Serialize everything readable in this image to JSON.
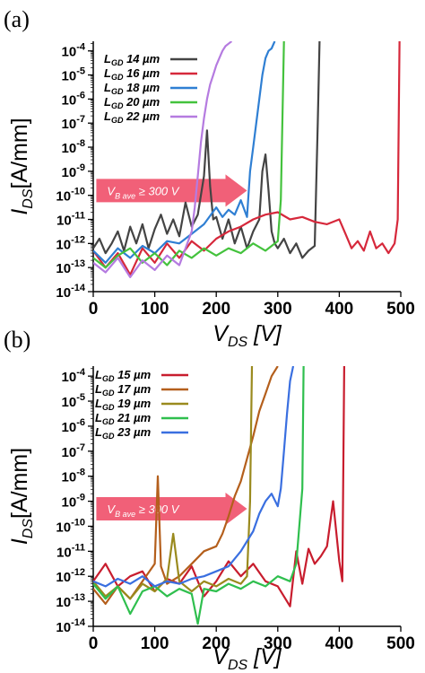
{
  "chart_data": [
    {
      "type": "line",
      "panel_label": "(a)",
      "xlabel_main": "V",
      "xlabel_sub": "DS",
      "xlabel_rest": " [V]",
      "ylabel_main": "I",
      "ylabel_sub": "DS",
      "ylabel_rest": "[A/mm]",
      "xlim": [
        0,
        500
      ],
      "ylog": true,
      "ylim_exp": [
        -14,
        -3.6
      ],
      "x_ticks": [
        0,
        100,
        200,
        300,
        400,
        500
      ],
      "y_tick_exponents": [
        -14,
        -13,
        -12,
        -11,
        -10,
        -9,
        -8,
        -7,
        -6,
        -5,
        -4
      ],
      "grid": false,
      "legend_position": "top-left",
      "annotation": {
        "pre": "V",
        "sub": "B ave",
        "post": " ≥ 300 V",
        "x_from": 5,
        "x_to": 250,
        "y_exp": -9.8
      },
      "series": [
        {
          "name_main": "L",
          "name_sub": "GD",
          "name_rest": " 14 µm",
          "color": "#444444",
          "x": [
            0,
            10,
            20,
            30,
            40,
            50,
            60,
            70,
            80,
            90,
            100,
            110,
            120,
            130,
            140,
            150,
            160,
            170,
            180,
            185,
            190,
            195,
            200,
            210,
            220,
            230,
            240,
            250,
            260,
            270,
            275,
            280,
            285,
            290,
            295,
            300,
            310,
            320,
            330,
            340,
            350,
            360,
            365,
            368
          ],
          "log_y": [
            -12.2,
            -11.8,
            -12.4,
            -12.0,
            -11.5,
            -12.3,
            -11.3,
            -12.0,
            -11.2,
            -12.2,
            -11.4,
            -10.8,
            -11.6,
            -11.0,
            -11.7,
            -10.3,
            -11.3,
            -10.8,
            -9.2,
            -7.3,
            -9.6,
            -11.0,
            -10.9,
            -11.8,
            -11.0,
            -12.0,
            -11.3,
            -12.2,
            -11.5,
            -11.0,
            -9.0,
            -8.3,
            -9.8,
            -11.5,
            -12.0,
            -12.2,
            -11.8,
            -12.4,
            -12.0,
            -12.6,
            -12.3,
            -12.1,
            -7.0,
            -3.6
          ]
        },
        {
          "name_main": "L",
          "name_sub": "GD",
          "name_rest": " 16 µm",
          "color": "#d6283b",
          "x": [
            0,
            20,
            40,
            60,
            80,
            100,
            120,
            140,
            160,
            180,
            200,
            220,
            240,
            260,
            280,
            300,
            320,
            340,
            360,
            380,
            400,
            410,
            420,
            430,
            440,
            450,
            460,
            470,
            480,
            490,
            495,
            498
          ],
          "log_y": [
            -12.3,
            -13.0,
            -12.4,
            -13.3,
            -12.2,
            -12.8,
            -12.0,
            -12.6,
            -11.9,
            -12.3,
            -11.8,
            -11.5,
            -11.3,
            -11.0,
            -10.8,
            -10.7,
            -11.0,
            -10.9,
            -11.1,
            -11.2,
            -11.0,
            -11.6,
            -12.2,
            -11.9,
            -12.3,
            -11.5,
            -12.2,
            -12.0,
            -12.4,
            -12.0,
            -11.0,
            -3.6
          ]
        },
        {
          "name_main": "L",
          "name_sub": "GD",
          "name_rest": " 18 µm",
          "color": "#2f7fd3",
          "x": [
            0,
            20,
            40,
            60,
            80,
            100,
            120,
            140,
            160,
            180,
            200,
            210,
            220,
            230,
            240,
            250,
            255,
            260,
            265,
            270,
            275,
            280,
            285,
            290,
            295
          ],
          "log_y": [
            -12.3,
            -12.8,
            -12.2,
            -12.6,
            -12.1,
            -12.4,
            -11.9,
            -12.0,
            -11.6,
            -11.2,
            -10.5,
            -10.9,
            -10.6,
            -10.8,
            -10.2,
            -10.9,
            -9.0,
            -8.0,
            -7.0,
            -6.0,
            -5.0,
            -4.3,
            -4.0,
            -3.9,
            -3.6
          ]
        },
        {
          "name_main": "L",
          "name_sub": "GD",
          "name_rest": " 20 µm",
          "color": "#44c23d",
          "x": [
            0,
            20,
            40,
            60,
            80,
            100,
            120,
            140,
            160,
            180,
            200,
            220,
            240,
            260,
            280,
            300,
            305,
            310
          ],
          "log_y": [
            -12.6,
            -13.0,
            -12.5,
            -12.2,
            -12.8,
            -12.4,
            -12.9,
            -12.3,
            -12.6,
            -12.2,
            -12.5,
            -12.2,
            -12.4,
            -12.0,
            -12.3,
            -11.9,
            -10.2,
            -3.6
          ]
        },
        {
          "name_main": "L",
          "name_sub": "GD",
          "name_rest": " 22 µm",
          "color": "#b57be0",
          "x": [
            0,
            20,
            40,
            60,
            80,
            100,
            120,
            140,
            150,
            160,
            165,
            170,
            175,
            180,
            185,
            190,
            195,
            200,
            205,
            210,
            215,
            220,
            225
          ],
          "log_y": [
            -12.8,
            -13.2,
            -12.6,
            -13.4,
            -12.7,
            -13.1,
            -12.5,
            -12.9,
            -12.2,
            -11.5,
            -10.5,
            -9.2,
            -7.8,
            -6.8,
            -6.0,
            -5.4,
            -5.0,
            -4.6,
            -4.3,
            -4.0,
            -3.8,
            -3.7,
            -3.6
          ]
        }
      ]
    },
    {
      "type": "line",
      "panel_label": "(b)",
      "xlabel_main": "V",
      "xlabel_sub": "DS",
      "xlabel_rest": " [V]",
      "ylabel_main": "I",
      "ylabel_sub": "DS",
      "ylabel_rest": "[A/mm]",
      "xlim": [
        0,
        500
      ],
      "ylog": true,
      "ylim_exp": [
        -14,
        -3.6
      ],
      "x_ticks": [
        0,
        100,
        200,
        300,
        400,
        500
      ],
      "y_tick_exponents": [
        -14,
        -13,
        -12,
        -11,
        -10,
        -9,
        -8,
        -7,
        -6,
        -5,
        -4
      ],
      "grid": false,
      "legend_position": "top-left",
      "annotation": {
        "pre": "V",
        "sub": "B ave",
        "post": " ≥ 300 V",
        "x_from": 5,
        "x_to": 250,
        "y_exp": -9.3
      },
      "series": [
        {
          "name_main": "L",
          "name_sub": "GD",
          "name_rest": " 15 µm",
          "color": "#c81d2e",
          "x": [
            0,
            20,
            40,
            60,
            80,
            100,
            120,
            140,
            160,
            180,
            200,
            220,
            240,
            260,
            280,
            300,
            320,
            330,
            340,
            350,
            360,
            370,
            380,
            390,
            400,
            405,
            408
          ],
          "log_y": [
            -12.2,
            -11.5,
            -12.4,
            -12.0,
            -11.8,
            -12.6,
            -12.1,
            -12.3,
            -11.6,
            -12.8,
            -12.2,
            -11.4,
            -12.0,
            -11.5,
            -12.2,
            -12.4,
            -13.2,
            -11.0,
            -12.3,
            -10.9,
            -11.5,
            -11.2,
            -10.8,
            -9.0,
            -11.4,
            -12.2,
            -3.6
          ]
        },
        {
          "name_main": "L",
          "name_sub": "GD",
          "name_rest": " 17 µm",
          "color": "#b45f1c",
          "x": [
            0,
            20,
            40,
            60,
            80,
            100,
            105,
            110,
            120,
            140,
            160,
            180,
            200,
            210,
            220,
            230,
            240,
            250,
            260,
            270,
            280,
            290,
            300
          ],
          "log_y": [
            -12.5,
            -13.1,
            -12.4,
            -12.9,
            -12.2,
            -11.5,
            -8.0,
            -11.6,
            -12.3,
            -12.0,
            -11.5,
            -11.0,
            -10.8,
            -10.3,
            -9.6,
            -8.8,
            -8.2,
            -7.3,
            -6.4,
            -5.4,
            -4.7,
            -4.0,
            -3.6
          ]
        },
        {
          "name_main": "L",
          "name_sub": "GD",
          "name_rest": " 19 µm",
          "color": "#9a8a1e",
          "x": [
            0,
            20,
            40,
            60,
            80,
            100,
            120,
            130,
            140,
            160,
            180,
            200,
            220,
            240,
            250,
            255,
            258
          ],
          "log_y": [
            -12.2,
            -12.8,
            -12.4,
            -12.9,
            -12.3,
            -12.6,
            -12.1,
            -10.3,
            -12.2,
            -12.6,
            -12.2,
            -12.4,
            -12.1,
            -12.3,
            -12.0,
            -9.0,
            -3.6
          ]
        },
        {
          "name_main": "L",
          "name_sub": "GD",
          "name_rest": " 21 µm",
          "color": "#2fbf4e",
          "x": [
            0,
            20,
            40,
            60,
            80,
            100,
            120,
            140,
            160,
            170,
            180,
            200,
            220,
            240,
            260,
            280,
            300,
            320,
            330,
            340,
            342
          ],
          "log_y": [
            -12.3,
            -12.9,
            -12.4,
            -13.5,
            -12.6,
            -12.4,
            -12.8,
            -12.5,
            -12.7,
            -13.9,
            -12.5,
            -12.6,
            -12.3,
            -12.5,
            -12.2,
            -12.4,
            -12.0,
            -12.2,
            -11.5,
            -8.5,
            -3.6
          ]
        },
        {
          "name_main": "L",
          "name_sub": "GD",
          "name_rest": " 23 µm",
          "color": "#3a6fe0",
          "x": [
            0,
            20,
            40,
            60,
            80,
            100,
            120,
            140,
            160,
            180,
            200,
            220,
            240,
            260,
            270,
            280,
            290,
            300,
            305,
            310,
            315,
            320,
            325
          ],
          "log_y": [
            -12.2,
            -12.4,
            -12.1,
            -12.3,
            -12.0,
            -12.4,
            -12.2,
            -12.3,
            -12.1,
            -12.0,
            -11.8,
            -11.6,
            -11.0,
            -10.2,
            -9.5,
            -9.0,
            -8.7,
            -9.2,
            -8.5,
            -7.0,
            -5.5,
            -4.2,
            -3.6
          ]
        }
      ]
    }
  ]
}
